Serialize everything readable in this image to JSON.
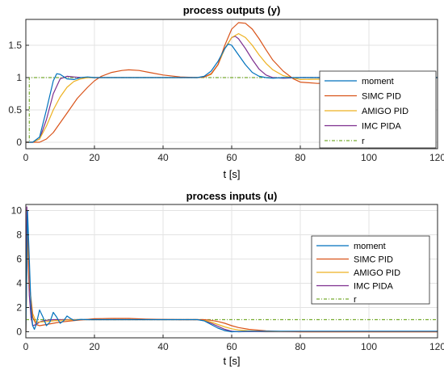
{
  "chart_data": [
    {
      "type": "line",
      "title": "process outputs (y)",
      "xlabel": "t [s]",
      "ylabel": "",
      "xlim": [
        0,
        120
      ],
      "ylim": [
        -0.1,
        1.9
      ],
      "xticks": [
        "0",
        "20",
        "40",
        "60",
        "80",
        "100",
        "120"
      ],
      "yticks": [
        "0",
        "0.5",
        "1",
        "1.5"
      ],
      "grid": true,
      "legend_position": "right",
      "series": [
        {
          "name": "moment",
          "color": "#0072BD",
          "dash": "",
          "x": [
            0,
            2,
            4,
            6,
            8,
            9,
            10,
            12,
            14,
            16,
            18,
            20,
            25,
            30,
            40,
            50,
            52,
            54,
            56,
            58,
            59,
            60,
            62,
            64,
            66,
            68,
            70,
            72,
            75,
            80,
            90,
            100,
            120
          ],
          "y": [
            0,
            0,
            0.08,
            0.5,
            0.95,
            1.06,
            1.05,
            0.98,
            0.97,
            1.0,
            1.01,
            1.0,
            1.0,
            1.0,
            1.0,
            1.0,
            1.02,
            1.1,
            1.25,
            1.45,
            1.52,
            1.5,
            1.35,
            1.2,
            1.08,
            1.02,
            1.0,
            0.99,
            1.0,
            1.0,
            1.0,
            1.0,
            1.0
          ]
        },
        {
          "name": "SIMC PID",
          "color": "#D95319",
          "dash": "",
          "x": [
            0,
            2,
            4,
            6,
            8,
            10,
            12,
            15,
            18,
            20,
            22,
            25,
            28,
            30,
            33,
            36,
            40,
            45,
            50,
            52,
            54,
            56,
            58,
            60,
            62,
            64,
            66,
            68,
            70,
            72,
            75,
            78,
            80,
            85,
            90,
            95,
            100,
            110,
            120
          ],
          "y": [
            0,
            0,
            0,
            0.05,
            0.15,
            0.3,
            0.45,
            0.68,
            0.85,
            0.95,
            1.02,
            1.08,
            1.11,
            1.12,
            1.11,
            1.08,
            1.04,
            1.01,
            1.0,
            1.01,
            1.06,
            1.2,
            1.5,
            1.75,
            1.85,
            1.84,
            1.75,
            1.6,
            1.43,
            1.27,
            1.1,
            0.98,
            0.93,
            0.91,
            0.92,
            0.95,
            0.97,
            0.99,
            1.0
          ]
        },
        {
          "name": "AMIGO PID",
          "color": "#EDB120",
          "dash": "",
          "x": [
            0,
            2,
            4,
            6,
            8,
            10,
            12,
            14,
            16,
            18,
            20,
            25,
            30,
            40,
            50,
            52,
            54,
            56,
            58,
            60,
            62,
            64,
            66,
            68,
            70,
            72,
            75,
            80,
            90,
            100,
            120
          ],
          "y": [
            0,
            0,
            0.05,
            0.25,
            0.5,
            0.7,
            0.85,
            0.94,
            0.98,
            1.0,
            1.0,
            1.0,
            1.0,
            1.0,
            1.0,
            1.01,
            1.05,
            1.2,
            1.45,
            1.62,
            1.68,
            1.62,
            1.5,
            1.35,
            1.22,
            1.12,
            1.03,
            0.97,
            0.98,
            1.0,
            1.0
          ]
        },
        {
          "name": "IMC PIDA",
          "color": "#7E2F8E",
          "dash": "",
          "x": [
            0,
            2,
            4,
            6,
            8,
            10,
            12,
            14,
            16,
            18,
            20,
            30,
            40,
            50,
            52,
            54,
            56,
            58,
            60,
            61,
            62,
            64,
            66,
            68,
            70,
            72,
            75,
            80,
            90,
            120
          ],
          "y": [
            0,
            0,
            0.05,
            0.35,
            0.75,
            0.98,
            1.02,
            1.01,
            1.0,
            1.0,
            1.0,
            1.0,
            1.0,
            1.0,
            1.01,
            1.05,
            1.2,
            1.45,
            1.62,
            1.64,
            1.6,
            1.45,
            1.28,
            1.13,
            1.04,
            1.0,
            0.99,
            1.0,
            1.0,
            1.0
          ]
        },
        {
          "name": "r",
          "color": "#77AC30",
          "dash": "4,2,1,2",
          "x": [
            0,
            1,
            1,
            120
          ],
          "y": [
            0,
            0,
            1,
            1
          ]
        }
      ]
    },
    {
      "type": "line",
      "title": "process inputs (u)",
      "xlabel": "t [s]",
      "ylabel": "",
      "xlim": [
        0,
        120
      ],
      "ylim": [
        -0.5,
        10.5
      ],
      "xticks": [
        "0",
        "20",
        "40",
        "60",
        "80",
        "100",
        "120"
      ],
      "yticks": [
        "0",
        "2",
        "4",
        "6",
        "8",
        "10"
      ],
      "grid": true,
      "legend_position": "right",
      "series": [
        {
          "name": "moment",
          "color": "#0072BD",
          "dash": "",
          "x": [
            0,
            0.5,
            1,
            1.5,
            2,
            2.5,
            3,
            4,
            5,
            6,
            7,
            8,
            9,
            10,
            11,
            12,
            13,
            14,
            16,
            18,
            20,
            25,
            30,
            40,
            50,
            52,
            54,
            56,
            58,
            60,
            62,
            65,
            70,
            80,
            120
          ],
          "y": [
            0,
            10,
            6,
            2,
            0.5,
            0.2,
            0.6,
            1.8,
            1.2,
            0.5,
            0.8,
            1.6,
            1.2,
            0.7,
            0.9,
            1.3,
            1.1,
            0.95,
            1.02,
            1.0,
            1.0,
            1.0,
            1.0,
            1.0,
            1.0,
            0.9,
            0.6,
            0.3,
            0.1,
            0.0,
            0.02,
            0.05,
            0.05,
            0.05,
            0.05
          ]
        },
        {
          "name": "SIMC PID",
          "color": "#D95319",
          "dash": "",
          "x": [
            0,
            0.5,
            1,
            2,
            3,
            4,
            6,
            8,
            10,
            15,
            20,
            25,
            30,
            35,
            40,
            45,
            50,
            52,
            54,
            56,
            58,
            60,
            62,
            65,
            70,
            75,
            80,
            90,
            100,
            120
          ],
          "y": [
            0,
            9,
            4,
            1.2,
            0.6,
            0.5,
            0.6,
            0.7,
            0.8,
            0.95,
            1.07,
            1.1,
            1.1,
            1.05,
            1.02,
            1.0,
            1.0,
            1.0,
            0.95,
            0.85,
            0.7,
            0.5,
            0.35,
            0.2,
            0.08,
            0.02,
            0.0,
            0.0,
            0.0,
            0.0
          ]
        },
        {
          "name": "AMIGO PID",
          "color": "#EDB120",
          "dash": "",
          "x": [
            0,
            0.5,
            1,
            2,
            3,
            4,
            6,
            8,
            10,
            15,
            20,
            25,
            30,
            40,
            50,
            52,
            54,
            56,
            58,
            60,
            62,
            65,
            70,
            80,
            120
          ],
          "y": [
            0,
            8,
            4,
            1.5,
            0.8,
            0.8,
            0.85,
            0.9,
            0.95,
            1.0,
            1.0,
            1.0,
            1.0,
            1.0,
            1.0,
            0.95,
            0.8,
            0.6,
            0.4,
            0.25,
            0.15,
            0.08,
            0.03,
            0.0,
            0.0
          ]
        },
        {
          "name": "IMC PIDA",
          "color": "#7E2F8E",
          "dash": "",
          "x": [
            0,
            0.3,
            0.6,
            1,
            1.5,
            2,
            3,
            4,
            5,
            6,
            8,
            10,
            15,
            20,
            30,
            40,
            50,
            52,
            54,
            56,
            58,
            60,
            62,
            65,
            70,
            120
          ],
          "y": [
            0,
            10.3,
            7,
            3,
            1.2,
            0.5,
            0.6,
            0.8,
            0.9,
            0.95,
            1.0,
            1.0,
            1.0,
            1.0,
            1.0,
            1.0,
            1.0,
            0.92,
            0.7,
            0.45,
            0.2,
            0.05,
            0.0,
            0.02,
            0.0,
            0.0
          ]
        },
        {
          "name": "r",
          "color": "#77AC30",
          "dash": "4,2,1,2",
          "x": [
            0,
            120
          ],
          "y": [
            1,
            1
          ]
        }
      ]
    }
  ]
}
